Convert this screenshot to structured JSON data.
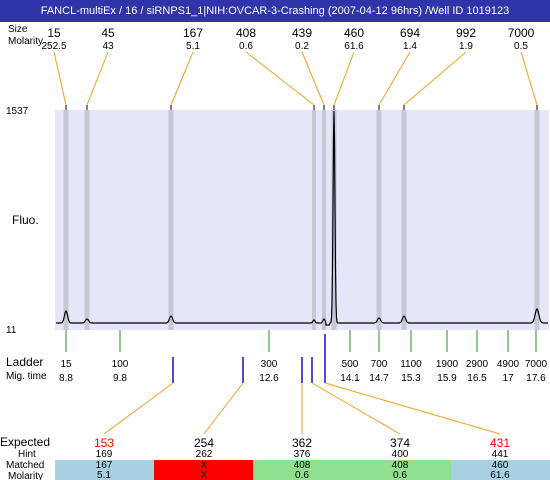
{
  "title": "FANCL-multiEx / 16 / siRNPS1_1|NIH:OVCAR-3-Crashing (2007-04-12 96hrs) /Well ID 1019123",
  "labels": {
    "size_header": "Size",
    "molarity_header": "Molarity",
    "fluo_label": "Fluo.",
    "ladder_label": "Ladder",
    "migtime_label": "Mig. time",
    "expected_label": "Expected",
    "hint_label": "Hint",
    "matched_label": "Matched",
    "molarity_label": "Molarity"
  },
  "colors": {
    "title_bg": "#2f34a8",
    "plot_bg": "#e6e6f8",
    "band": "#c8c8d4",
    "connector": "#f0a020",
    "ladder_tick": "#2e8b2e",
    "expected_tick": "#1010c8",
    "red": "#ff0000",
    "green": "#90e090",
    "blue": "#a8d0e0"
  },
  "chart_data": {
    "type": "line",
    "ylim": [
      11,
      1537
    ],
    "y_tick_labels": [
      "1537",
      "11"
    ],
    "ylabel": "Fluo.",
    "peaks": [
      {
        "size": "15",
        "molarity": "252.5"
      },
      {
        "size": "45",
        "molarity": "43"
      },
      {
        "size": "167",
        "molarity": "5.1"
      },
      {
        "size": "408",
        "molarity": "0.6"
      },
      {
        "size": "439",
        "molarity": "0.2"
      },
      {
        "size": "460",
        "molarity": "61.6"
      },
      {
        "size": "694",
        "molarity": "1.4"
      },
      {
        "size": "992",
        "molarity": "1.9"
      },
      {
        "size": "7000",
        "molarity": "0.5"
      }
    ],
    "ladder": [
      {
        "size": "15",
        "mig_time": "8.8"
      },
      {
        "size": "100",
        "mig_time": "9.8"
      },
      {
        "size": "300",
        "mig_time": "12.6"
      },
      {
        "size": "500",
        "mig_time": "14.1"
      },
      {
        "size": "700",
        "mig_time": "14.7"
      },
      {
        "size": "1100",
        "mig_time": "15.3"
      },
      {
        "size": "1900",
        "mig_time": "15.9"
      },
      {
        "size": "2900",
        "mig_time": "16.5"
      },
      {
        "size": "4900",
        "mig_time": "17"
      },
      {
        "size": "7000",
        "mig_time": "17.6"
      }
    ],
    "expected": [
      {
        "expected": "153",
        "hint": "169",
        "matched": "167",
        "molarity": "5.1",
        "status": "blue",
        "label_red": true
      },
      {
        "expected": "254",
        "hint": "262",
        "matched": "X",
        "molarity": "X",
        "status": "red",
        "label_red": false
      },
      {
        "expected": "362",
        "hint": "376",
        "matched": "408",
        "molarity": "0.6",
        "status": "green",
        "label_red": false
      },
      {
        "expected": "374",
        "hint": "400",
        "matched": "408",
        "molarity": "0.6",
        "status": "green",
        "label_red": false
      },
      {
        "expected": "431",
        "hint": "441",
        "matched": "460",
        "molarity": "61.6",
        "status": "blue",
        "label_red": true
      }
    ]
  }
}
